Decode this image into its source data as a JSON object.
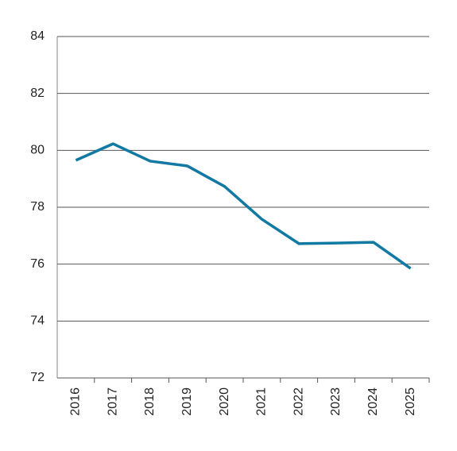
{
  "chart_data": {
    "type": "line",
    "categories": [
      "2016",
      "2017",
      "2018",
      "2019",
      "2020",
      "2021",
      "2022",
      "2023",
      "2024",
      "2025"
    ],
    "series": [
      {
        "color": "#1279a3",
        "values": [
          79.65,
          80.23,
          79.62,
          79.45,
          78.73,
          77.58,
          76.72,
          76.74,
          76.77,
          75.85
        ]
      }
    ],
    "ylim": [
      72,
      84
    ],
    "yticks": [
      72,
      74,
      76,
      78,
      80,
      82,
      84
    ],
    "grid": true
  }
}
